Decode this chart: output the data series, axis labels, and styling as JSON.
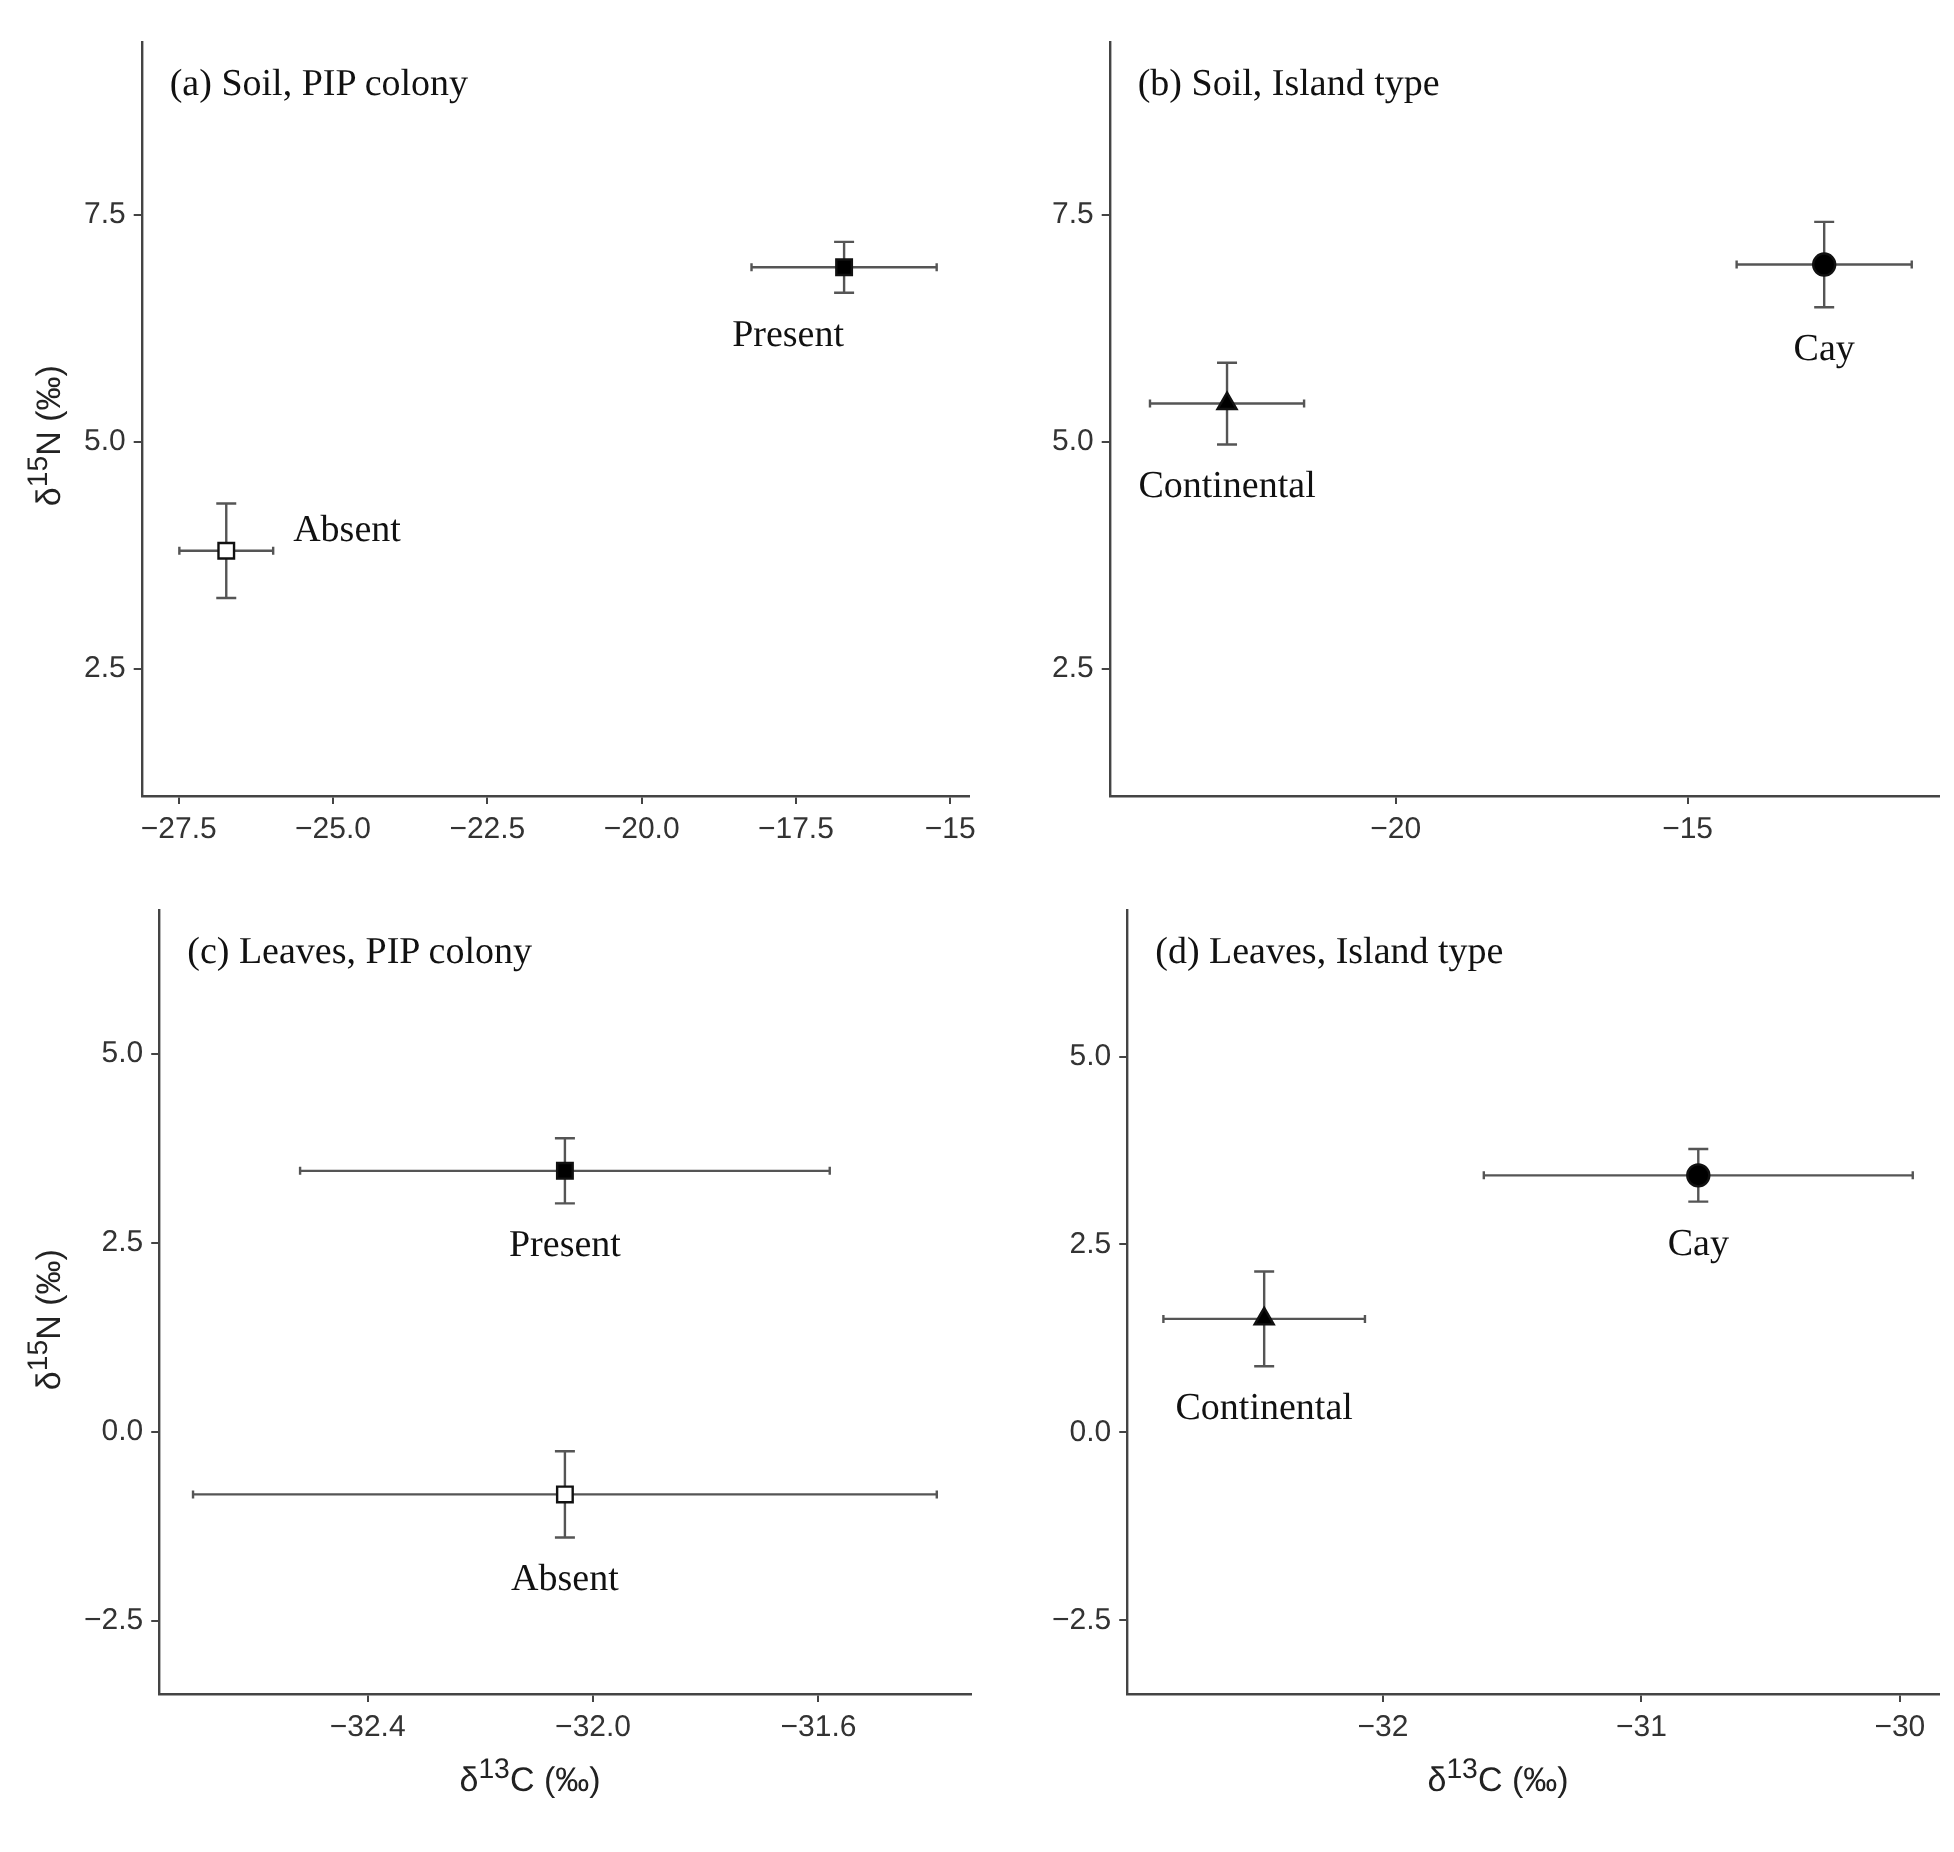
{
  "chart_data": [
    {
      "type": "scatter",
      "title": "(a) Soil, PIP colony",
      "ylabel": "δ$^{15}$N (‰)",
      "xlim": [
        -28.1,
        -14.7
      ],
      "xticks": [
        {
          "value": -27.5,
          "label": "−27.5"
        },
        {
          "value": -25,
          "label": "−25.0"
        },
        {
          "value": -22.5,
          "label": "−22.5"
        },
        {
          "value": -20,
          "label": "−20.0"
        },
        {
          "value": -17.5,
          "label": "−17.5"
        },
        {
          "value": -15,
          "label": "−15"
        }
      ],
      "ylim": [
        1.1,
        9.4
      ],
      "yticks": [
        {
          "value": 2.5,
          "label": "2.5"
        },
        {
          "value": 5,
          "label": "5.0"
        },
        {
          "value": 7.5,
          "label": "7.5"
        }
      ],
      "legend": false,
      "series": [
        {
          "name": "Absent",
          "marker": "square",
          "color": "#ffffff",
          "x": [
            -26.73
          ],
          "values": [
            3.8
          ],
          "errors": [
            0.52
          ],
          "xerrors": [
            0.76
          ]
        },
        {
          "name": "Present",
          "marker": "square",
          "color": "#000000",
          "x": [
            -16.72
          ],
          "values": [
            6.92
          ],
          "errors": [
            0.28
          ],
          "xerrors": [
            1.5
          ]
        }
      ]
    },
    {
      "type": "scatter",
      "title": "(b) Soil, Island type",
      "xlim": [
        -24.9,
        -10.7
      ],
      "xticks": [
        {
          "value": -20,
          "label": "−20"
        },
        {
          "value": -15,
          "label": "−15"
        }
      ],
      "ylim": [
        1.1,
        9.4
      ],
      "yticks": [
        {
          "value": 2.5,
          "label": "2.5"
        },
        {
          "value": 5,
          "label": "5.0"
        },
        {
          "value": 7.5,
          "label": "7.5"
        }
      ],
      "legend": false,
      "series": [
        {
          "name": "Continental",
          "marker": "triangle",
          "color": "#000000",
          "x": [
            -22.89
          ],
          "values": [
            5.42
          ],
          "errors": [
            0.45
          ],
          "xerrors": [
            1.32
          ]
        },
        {
          "name": "Cay",
          "marker": "circle",
          "color": "#000000",
          "x": [
            -12.66
          ],
          "values": [
            6.95
          ],
          "errors": [
            0.47
          ],
          "xerrors": [
            1.5
          ]
        }
      ]
    },
    {
      "type": "scatter",
      "title": "(c) Leaves, PIP colony",
      "xlabel": "δ$^{13}$C (‰)",
      "ylabel": "δ$^{15}$N (‰)",
      "xlim": [
        -32.77,
        -31.33
      ],
      "xticks": [
        {
          "value": -32.4,
          "label": "−32.4"
        },
        {
          "value": -32,
          "label": "−32.0"
        },
        {
          "value": -31.6,
          "label": "−31.6"
        }
      ],
      "ylim": [
        -3.47,
        6.9
      ],
      "yticks": [
        {
          "value": -2.5,
          "label": "−2.5"
        },
        {
          "value": 0,
          "label": "0.0"
        },
        {
          "value": 2.5,
          "label": "2.5"
        },
        {
          "value": 5,
          "label": "5.0"
        }
      ],
      "legend": false,
      "series": [
        {
          "name": "Present",
          "marker": "square",
          "color": "#000000",
          "x": [
            -32.05
          ],
          "values": [
            3.45
          ],
          "errors": [
            0.43
          ],
          "xerrors": [
            0.47
          ]
        },
        {
          "name": "Absent",
          "marker": "square",
          "color": "#ffffff",
          "x": [
            -32.05
          ],
          "values": [
            -0.83
          ],
          "errors": [
            0.57
          ],
          "xerrors": [
            0.66
          ]
        }
      ]
    },
    {
      "type": "scatter",
      "title": "(d) Leaves, Island type",
      "xlabel": "δ$^{13}$C (‰)",
      "xlim": [
        -32.99,
        -29.85
      ],
      "xticks": [
        {
          "value": -32,
          "label": "−32"
        },
        {
          "value": -31,
          "label": "−31"
        },
        {
          "value": -30,
          "label": "−30"
        }
      ],
      "ylim": [
        -3.48,
        6.95
      ],
      "yticks": [
        {
          "value": -2.5,
          "label": "−2.5"
        },
        {
          "value": 0,
          "label": "0.0"
        },
        {
          "value": 2.5,
          "label": "2.5"
        },
        {
          "value": 5,
          "label": "5.0"
        }
      ],
      "legend": false,
      "series": [
        {
          "name": "Continental",
          "marker": "triangle",
          "color": "#000000",
          "x": [
            -32.46
          ],
          "values": [
            1.51
          ],
          "errors": [
            0.63
          ],
          "xerrors": [
            0.39
          ]
        },
        {
          "name": "Cay",
          "marker": "circle",
          "color": "#000000",
          "x": [
            -30.78
          ],
          "values": [
            3.42
          ],
          "errors": [
            0.35
          ],
          "xerrors": [
            0.83
          ]
        }
      ]
    }
  ]
}
